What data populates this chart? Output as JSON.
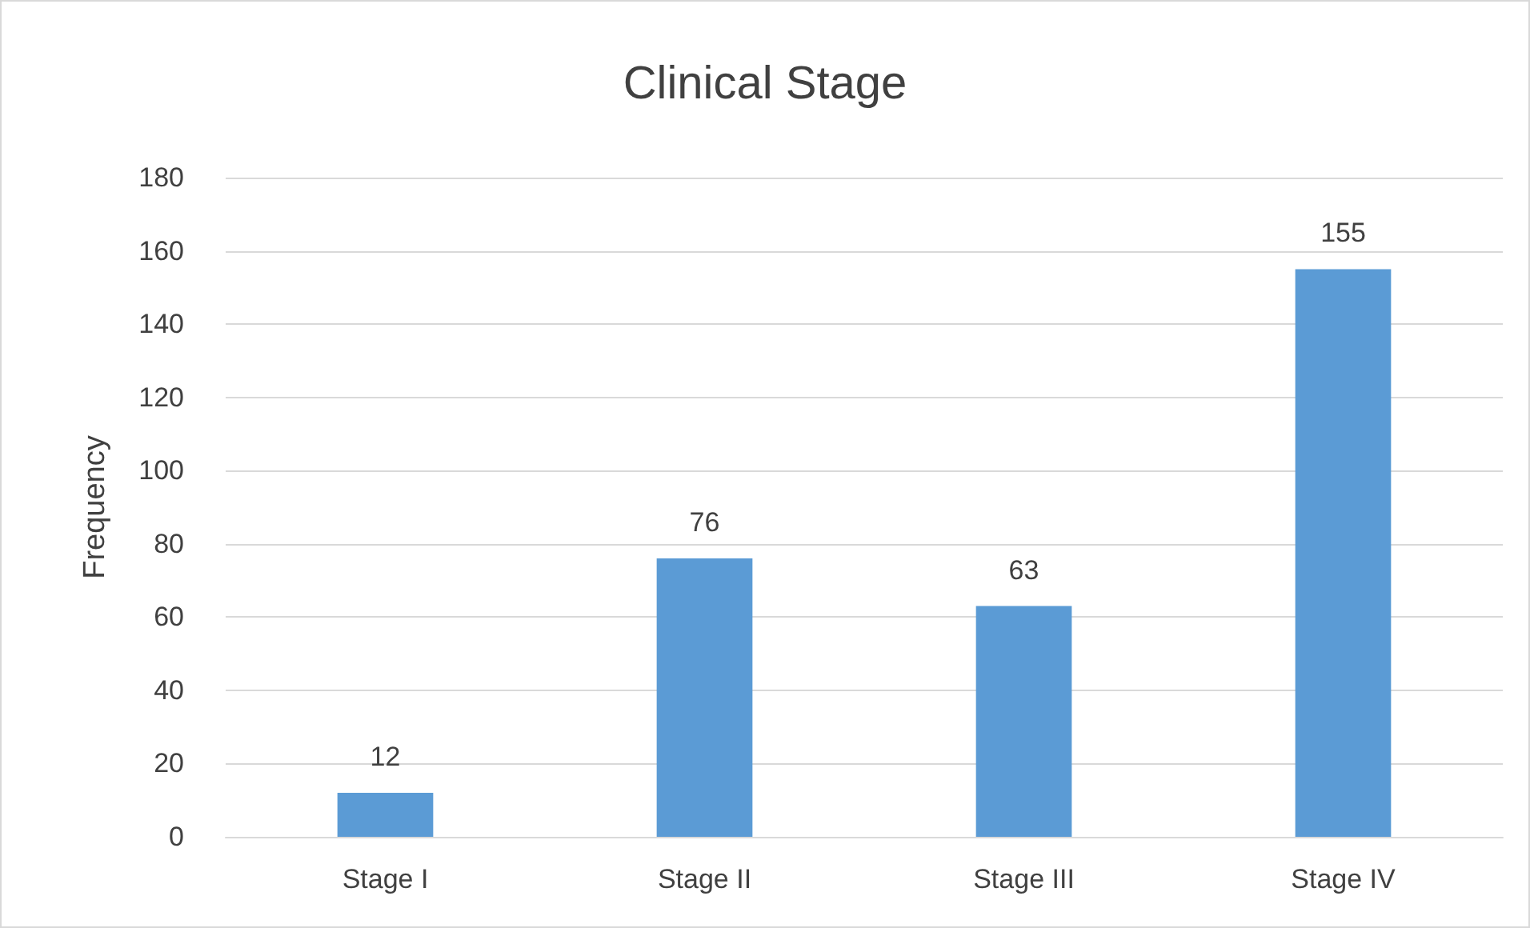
{
  "chart_data": {
    "type": "bar",
    "title": "Clinical Stage",
    "ylabel": "Frequency",
    "categories": [
      "Stage I",
      "Stage II",
      "Stage III",
      "Stage IV"
    ],
    "values": [
      12,
      76,
      63,
      155
    ],
    "color": "#5b9bd5",
    "ylim": [
      0,
      180
    ],
    "yticks": [
      0,
      20,
      40,
      60,
      80,
      100,
      120,
      140,
      160,
      180
    ],
    "grid": "y",
    "data_labels": true
  }
}
